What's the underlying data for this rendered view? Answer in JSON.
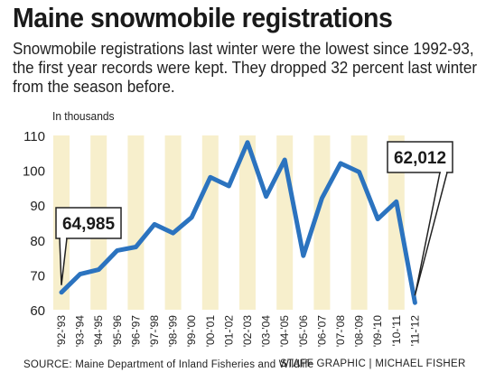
{
  "header": {
    "title": "Maine snowmobile registrations",
    "subtitle": "Snowmobile registrations last winter were the lowest since 1992-93, the first year records were kept. They dropped 32 percent last winter from the season before."
  },
  "footer": {
    "source": "SOURCE: Maine Department of Inland Fisheries and Wildlife",
    "credit": "STAFF GRAPHIC | MICHAEL FISHER"
  },
  "colors": {
    "line": "#2b73bf",
    "band": "#f7efcc",
    "callout_border": "#222222"
  },
  "chart_data": {
    "type": "line",
    "title": "Maine snowmobile registrations",
    "unit_label": "In thousands",
    "categories": [
      "'92-'93",
      "'93-'94",
      "'94-'95",
      "'95-'96",
      "'96-'97",
      "'97-'98",
      "'98-'99",
      "'99-'00",
      "'00-'01",
      "'01-'02",
      "'02-'03",
      "'03-'04",
      "'04-'05",
      "'05-'06",
      "'06-'07",
      "'07-'08",
      "'08-'09",
      "'09-'10",
      "'10-'11",
      "'11-'12"
    ],
    "values": [
      64.985,
      70.2,
      71.5,
      77.0,
      78.0,
      84.5,
      82.0,
      86.5,
      98.0,
      95.5,
      108.0,
      92.5,
      103.0,
      75.5,
      92.0,
      102.0,
      99.5,
      86.0,
      91.0,
      62.012
    ],
    "ylim": [
      60,
      110
    ],
    "yticks": [
      60,
      70,
      80,
      90,
      100,
      110
    ],
    "grid": false,
    "annotations": [
      {
        "index": 0,
        "label": "64,985"
      },
      {
        "index": 19,
        "label": "62,012"
      }
    ]
  }
}
